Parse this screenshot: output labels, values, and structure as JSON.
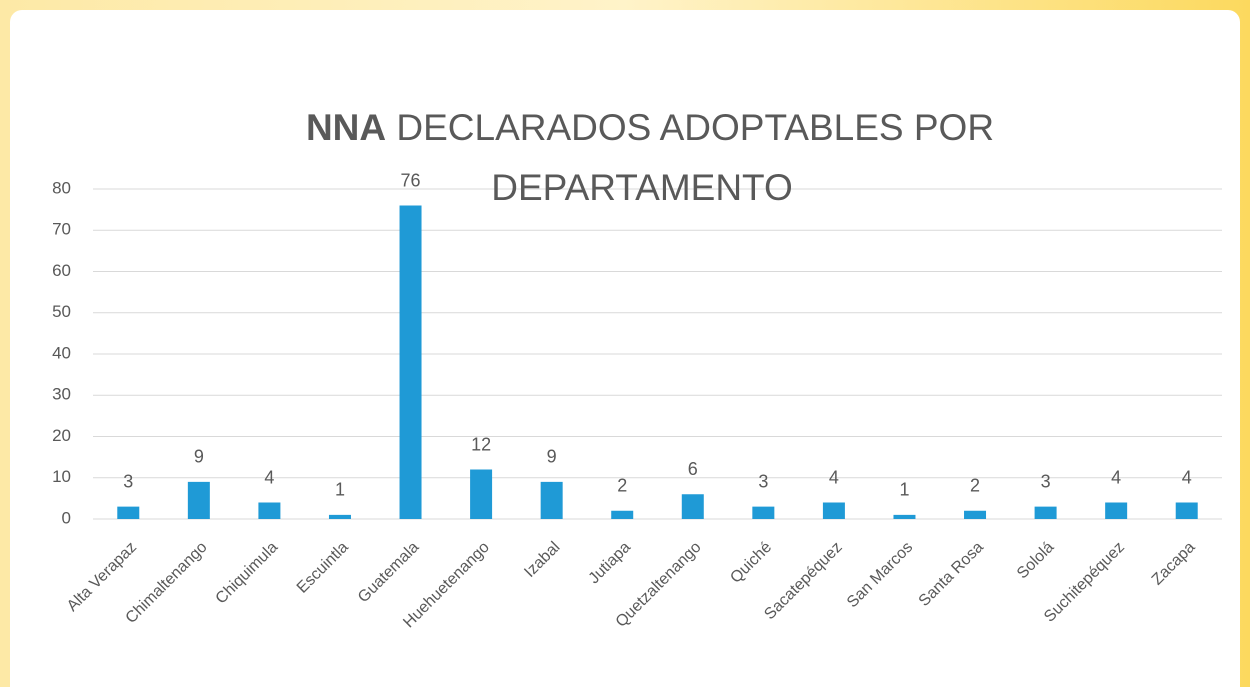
{
  "chart_data": {
    "type": "bar",
    "title": {
      "bold": "NNA",
      "line1": "DECLARADOS ADOPTABLES POR",
      "line2": "DEPARTAMENTO"
    },
    "categories": [
      "Alta Verapaz",
      "Chimaltenango",
      "Chiquimula",
      "Escuintla",
      "Guatemala",
      "Huehuetenango",
      "Izabal",
      "Jutiapa",
      "Quetzaltenango",
      "Quiché",
      "Sacatepéquez",
      "San Marcos",
      "Santa Rosa",
      "Sololá",
      "Suchitepéquez",
      "Zacapa"
    ],
    "values": [
      3,
      9,
      4,
      1,
      76,
      12,
      9,
      2,
      6,
      3,
      4,
      1,
      2,
      3,
      4,
      4
    ],
    "color": "#1f9ad6",
    "ylim": [
      0,
      80
    ],
    "yticks": [
      0,
      10,
      20,
      30,
      40,
      50,
      60,
      70,
      80
    ],
    "grid": true
  }
}
